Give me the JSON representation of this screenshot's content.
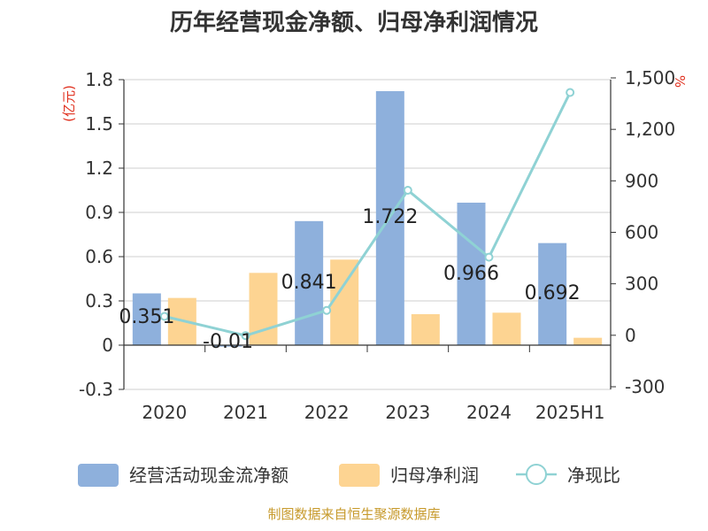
{
  "chart_data": {
    "type": "bar",
    "title": "历年经营现金净额、归母净利润情况",
    "categories": [
      "2020",
      "2021",
      "2022",
      "2023",
      "2024",
      "2025H1"
    ],
    "left_axis": {
      "unit_label": "(亿元)",
      "ylim": [
        -0.3,
        1.8
      ],
      "ticks": [
        "-0.3",
        "0",
        "0.3",
        "0.6",
        "0.9",
        "1.2",
        "1.5",
        "1.8"
      ]
    },
    "right_axis": {
      "unit_label": "%",
      "ylim": [
        -300,
        1500
      ],
      "ticks": [
        "-300",
        "0",
        "300",
        "600",
        "900",
        "1,200",
        "1,500"
      ]
    },
    "series": [
      {
        "name": "经营活动现金流净额",
        "kind": "bar",
        "axis": "left",
        "color": "#8eb0dc",
        "values": [
          0.351,
          -0.01,
          0.841,
          1.722,
          0.966,
          0.692
        ],
        "labels": [
          "0.351",
          "-0.01",
          "0.841",
          "1.722",
          "0.966",
          "0.692"
        ]
      },
      {
        "name": "归母净利润",
        "kind": "bar",
        "axis": "left",
        "color": "#fdd492",
        "values": [
          0.32,
          0.49,
          0.58,
          0.21,
          0.22,
          0.05
        ]
      },
      {
        "name": "净现比",
        "kind": "line",
        "axis": "right",
        "color": "#8fd2d4",
        "values": [
          110,
          -2,
          145,
          845,
          455,
          1415
        ]
      }
    ],
    "grid": true,
    "legend_position": "bottom"
  },
  "footer": {
    "source": "制图数据来自恒生聚源数据库"
  }
}
